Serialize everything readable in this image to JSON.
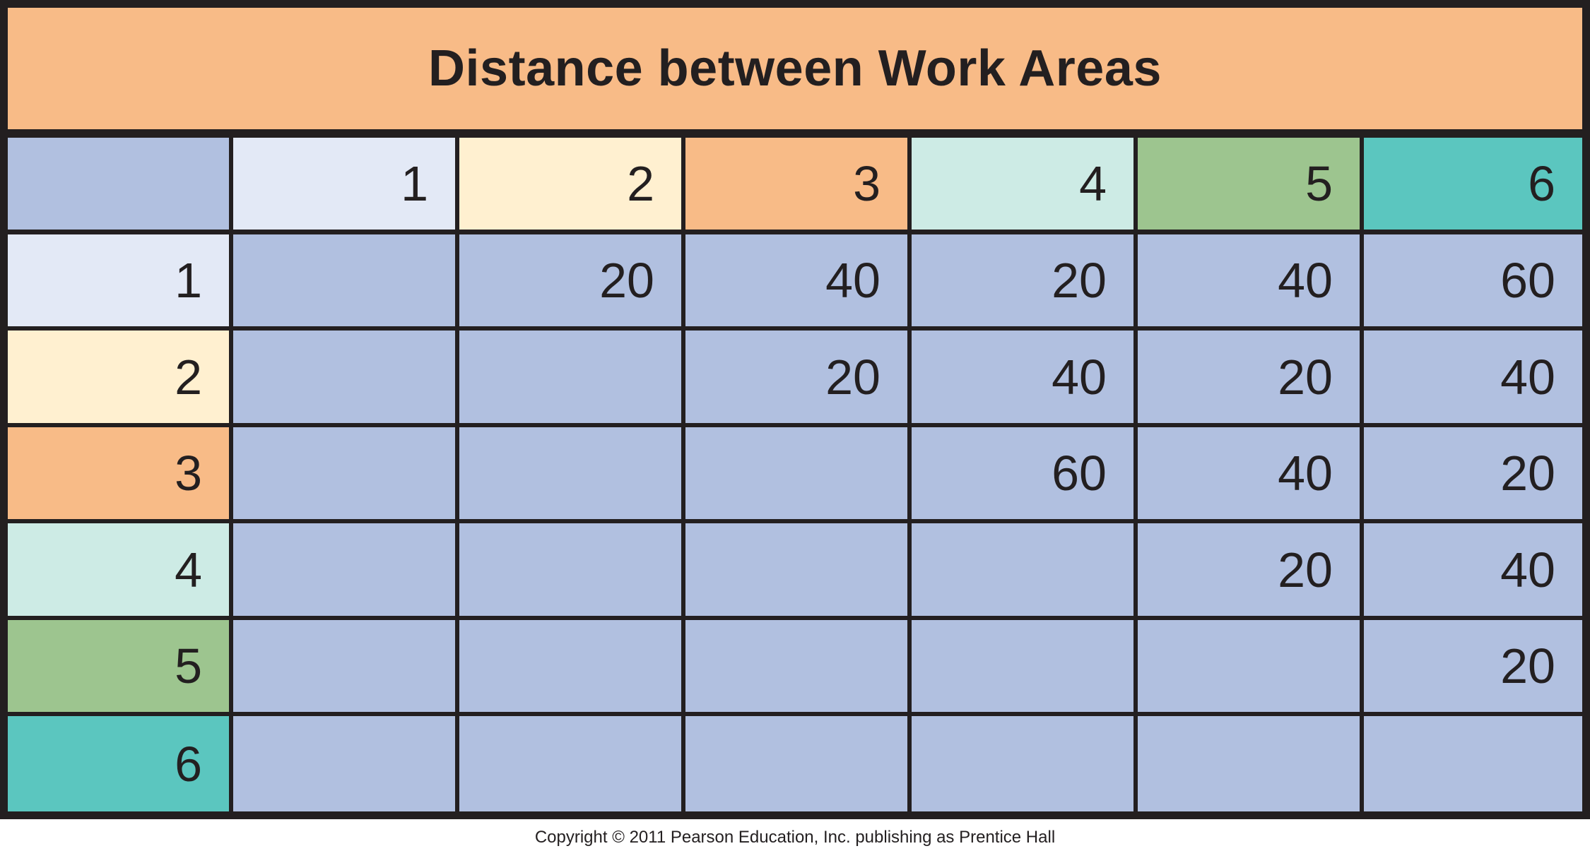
{
  "colors": {
    "title_background": "#f8bb87",
    "body_cell": "#b1c0e0",
    "corner": "#b1c0e0",
    "grid_lines": "#231f20",
    "area_1": "#e3e9f6",
    "area_2": "#fff0d0",
    "area_3": "#f8bb87",
    "area_4": "#cdebe5",
    "area_5": "#9dc58f",
    "area_6": "#5bc6bf"
  },
  "chart_data": {
    "type": "table",
    "title": "Distance between Work Areas",
    "column_headers": [
      "1",
      "2",
      "3",
      "4",
      "5",
      "6"
    ],
    "row_headers": [
      "1",
      "2",
      "3",
      "4",
      "5",
      "6"
    ],
    "header_colors": [
      "#e3e9f6",
      "#fff0d0",
      "#f8bb87",
      "#cdebe5",
      "#9dc58f",
      "#5bc6bf"
    ],
    "rows": [
      [
        "",
        "20",
        "40",
        "20",
        "40",
        "60"
      ],
      [
        "",
        "",
        "20",
        "40",
        "20",
        "40"
      ],
      [
        "",
        "",
        "",
        "60",
        "40",
        "20"
      ],
      [
        "",
        "",
        "",
        "",
        "20",
        "40"
      ],
      [
        "",
        "",
        "",
        "",
        "",
        "20"
      ],
      [
        "",
        "",
        "",
        "",
        "",
        ""
      ]
    ]
  },
  "footer": {
    "copyright": "Copyright © 2011 Pearson Education, Inc. publishing as Prentice Hall"
  }
}
